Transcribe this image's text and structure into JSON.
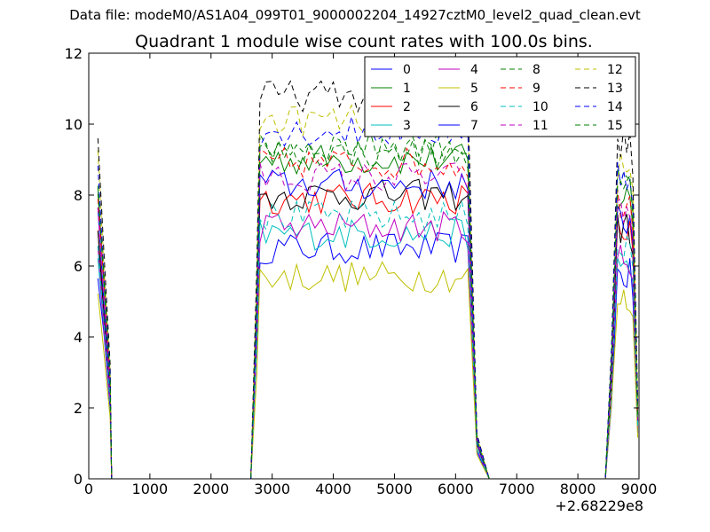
{
  "header": {
    "supertitle": "Data file: modeM0/AS1A04_099T01_9000002204_14927cztM0_level2_quad_clean.evt"
  },
  "chart_data": {
    "type": "line",
    "title": "Quadrant 1 module wise count rates with 100.0s bins.",
    "xlabel": "",
    "ylabel": "",
    "x_offset_label": "+2.68229e8",
    "xlim": [
      0,
      9000
    ],
    "ylim": [
      0,
      12
    ],
    "xticks": [
      "0",
      "1000",
      "2000",
      "3000",
      "4000",
      "5000",
      "6000",
      "7000",
      "8000",
      "9000"
    ],
    "yticks": [
      "0",
      "2",
      "4",
      "6",
      "8",
      "10",
      "12"
    ],
    "grid": false,
    "legend_position": "top-right",
    "legend_columns": 4,
    "segments": [
      {
        "on": [
          150,
          350
        ],
        "off": 375
      },
      {
        "ramp_start": 2650,
        "on": [
          2750,
          6250
        ],
        "off_start": 6350,
        "off": 6550
      },
      {
        "ramp_start": 8450,
        "on": [
          8650,
          8980
        ]
      }
    ],
    "series": [
      {
        "name": "0",
        "color": "#0000ff",
        "style": "solid",
        "level": 6.5
      },
      {
        "name": "1",
        "color": "#008000",
        "style": "solid",
        "level": 9.0
      },
      {
        "name": "2",
        "color": "#ff0000",
        "style": "solid",
        "level": 7.9
      },
      {
        "name": "3",
        "color": "#00bfbf",
        "style": "solid",
        "level": 6.9
      },
      {
        "name": "4",
        "color": "#bf00bf",
        "style": "solid",
        "level": 7.1
      },
      {
        "name": "5",
        "color": "#bfbf00",
        "style": "solid",
        "level": 5.7
      },
      {
        "name": "6",
        "color": "#000000",
        "style": "solid",
        "level": 8.0
      },
      {
        "name": "7",
        "color": "#0000ff",
        "style": "solid",
        "level": 8.3
      },
      {
        "name": "8",
        "color": "#008000",
        "style": "dashed",
        "level": 9.4
      },
      {
        "name": "9",
        "color": "#ff0000",
        "style": "dashed",
        "level": 8.9
      },
      {
        "name": "10",
        "color": "#00bfbf",
        "style": "dashed",
        "level": 7.4
      },
      {
        "name": "11",
        "color": "#bf00bf",
        "style": "dashed",
        "level": 8.5
      },
      {
        "name": "12",
        "color": "#bfbf00",
        "style": "dashed",
        "level": 10.1
      },
      {
        "name": "13",
        "color": "#000000",
        "style": "dashed",
        "level": 10.8
      },
      {
        "name": "14",
        "color": "#0000ff",
        "style": "dashed",
        "level": 9.8
      },
      {
        "name": "15",
        "color": "#008000",
        "style": "dashed",
        "level": 9.2
      }
    ]
  }
}
